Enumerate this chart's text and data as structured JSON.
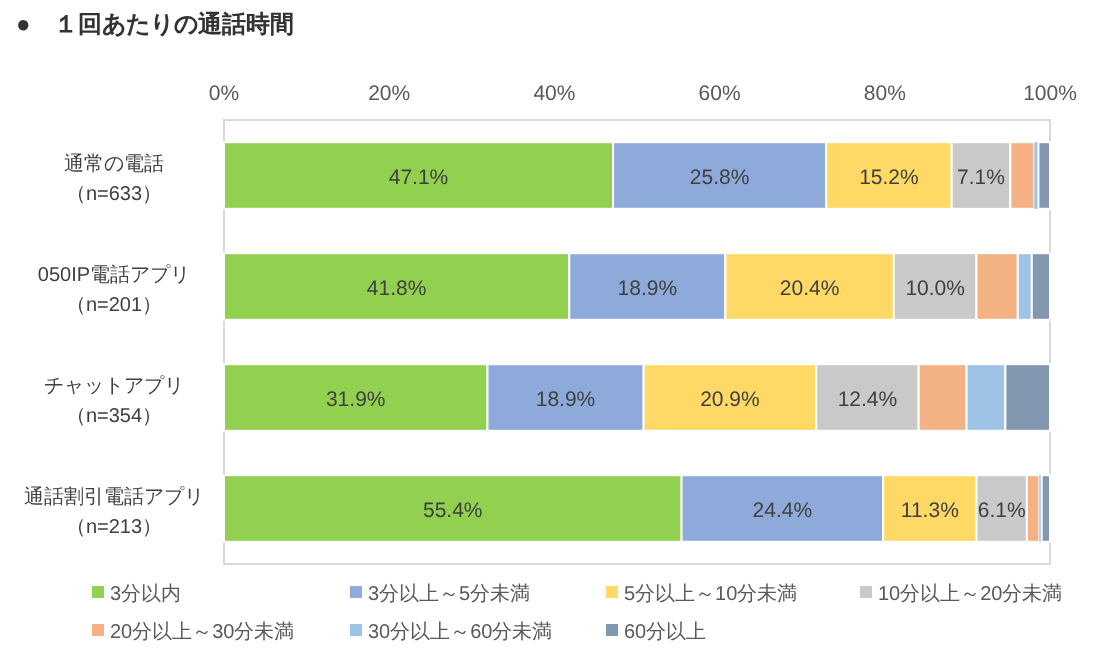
{
  "chart_data": {
    "type": "bar",
    "orientation": "horizontal",
    "stacked": true,
    "title": "●　１回あたりの通話時間",
    "categories": [
      "通常の電話（n=633）",
      "050IP電話アプリ（n=201）",
      "チャットアプリ（n=354）",
      "通話割引電話アプリ（n=213）"
    ],
    "xlim": [
      0,
      100
    ],
    "xticks": [
      {
        "value": 0,
        "label": "0%"
      },
      {
        "value": 20,
        "label": "20%"
      },
      {
        "value": 40,
        "label": "40%"
      },
      {
        "value": 60,
        "label": "60%"
      },
      {
        "value": 80,
        "label": "80%"
      },
      {
        "value": 100,
        "label": "100%"
      }
    ],
    "legend": "bottom",
    "grid": false,
    "series": [
      {
        "name": "3分以内",
        "color": "#92d050",
        "values": [
          47.1,
          41.8,
          31.9,
          55.4
        ],
        "value_labels": [
          "47.1%",
          "41.8%",
          "31.9%",
          "55.4%"
        ]
      },
      {
        "name": "3分以上～5分未満",
        "color": "#8eaadb",
        "values": [
          25.8,
          18.9,
          18.9,
          24.4
        ],
        "value_labels": [
          "25.8%",
          "18.9%",
          "18.9%",
          "24.4%"
        ]
      },
      {
        "name": "5分以上～10分未満",
        "color": "#ffd966",
        "values": [
          15.2,
          20.4,
          20.9,
          11.3
        ],
        "value_labels": [
          "15.2%",
          "20.4%",
          "20.9%",
          "11.3%"
        ]
      },
      {
        "name": "10分以上～20分未満",
        "color": "#c9c9c9",
        "values": [
          7.1,
          10.0,
          12.4,
          6.1
        ],
        "value_labels": [
          "7.1%",
          "10.0%",
          "12.4%",
          "6.1%"
        ]
      },
      {
        "name": "20分以上～30分未満",
        "color": "#f4b183",
        "values": [
          2.9,
          5.0,
          5.8,
          1.5
        ]
      },
      {
        "name": "30分以上～60分未満",
        "color": "#9dc3e6",
        "values": [
          0.5,
          1.7,
          4.7,
          0.3
        ]
      },
      {
        "name": "60分以上",
        "color": "#8497b0",
        "values": [
          1.4,
          2.2,
          5.4,
          1.0
        ]
      }
    ]
  }
}
